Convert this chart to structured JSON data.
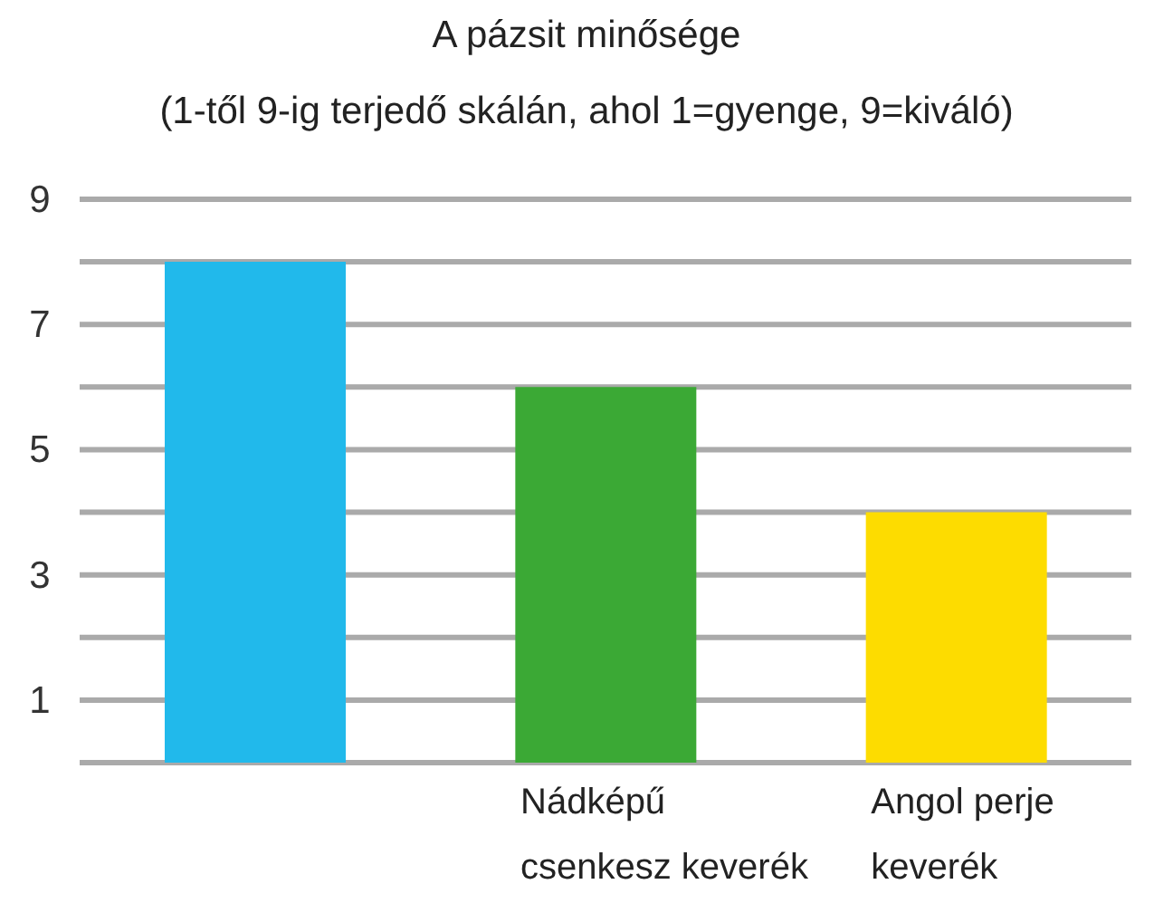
{
  "chart_data": {
    "type": "bar",
    "title": "A pázsit minősége",
    "subtitle": "(1-től 9-ig terjedő skálán, ahol 1=gyenge, 9=kiváló)",
    "categories": [
      null,
      "Nádképű\ncsenkesz keverék",
      "Angol perje\nkeverék"
    ],
    "values": [
      8,
      6,
      4
    ],
    "colors": [
      "#21b9eb",
      "#3ba935",
      "#fddc00"
    ],
    "ylim": [
      0,
      9
    ],
    "yticks": [
      {
        "value": 0,
        "label": null
      },
      1,
      {
        "value": 2,
        "label": null
      },
      3,
      {
        "value": 4,
        "label": null
      },
      5,
      {
        "value": 6,
        "label": null
      },
      7,
      {
        "value": 8,
        "label": null
      },
      9
    ],
    "grid": "y"
  }
}
